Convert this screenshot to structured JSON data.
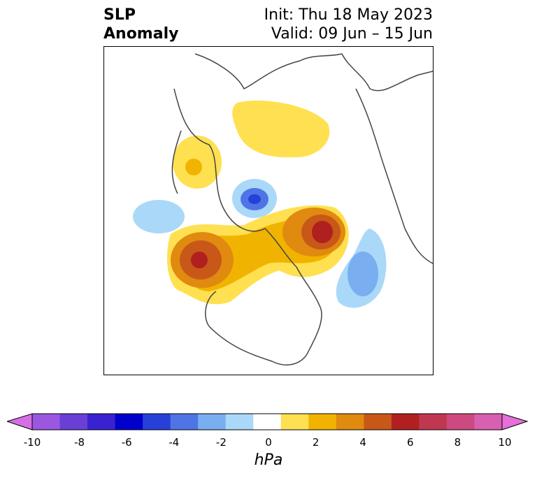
{
  "title": {
    "left_line1": "SLP",
    "left_line2": "Anomaly",
    "right_line1": "Init: Thu 18 May 2023",
    "right_line2": "Valid: 09 Jun – 15 Jun"
  },
  "colorbar": {
    "unit": "hPa",
    "ticks": [
      "-10",
      "-8",
      "-6",
      "-4",
      "-2",
      "0",
      "2",
      "4",
      "6",
      "8",
      "10"
    ],
    "colors": [
      "#d66fe6",
      "#9b57e0",
      "#6a3fd8",
      "#3a22d0",
      "#0000cc",
      "#2640d8",
      "#4f74e6",
      "#79aef0",
      "#aad8f8",
      "#ffffff",
      "#ffe050",
      "#f0b400",
      "#e08a10",
      "#c85818",
      "#b02020",
      "#c03850",
      "#cc4a80",
      "#d860b0",
      "#e470d8"
    ]
  },
  "map": {
    "features": [
      "positive-anomaly-pacific",
      "positive-anomaly-greenland",
      "negative-anomaly-atlantic",
      "negative-anomaly-arctic"
    ]
  }
}
